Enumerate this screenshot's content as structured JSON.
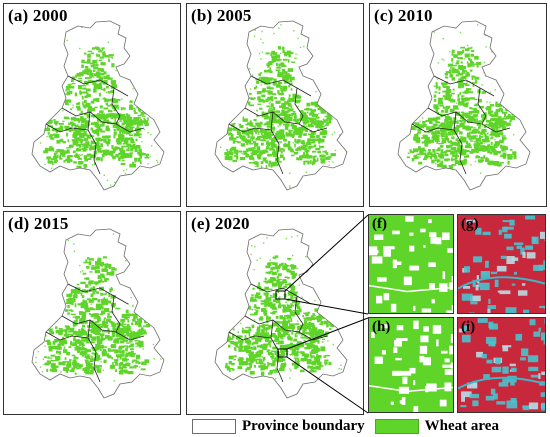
{
  "panels": [
    {
      "label": "(a) 2000"
    },
    {
      "label": "(b) 2005"
    },
    {
      "label": "(c) 2010"
    },
    {
      "label": "(d) 2015"
    },
    {
      "label": "(e) 2020"
    }
  ],
  "insets": [
    {
      "label": "(f)",
      "kind": "wheat-classification"
    },
    {
      "label": "(g)",
      "kind": "satellite-false-color"
    },
    {
      "label": "(h)",
      "kind": "wheat-classification"
    },
    {
      "label": "(i)",
      "kind": "satellite-false-color"
    }
  ],
  "legend": {
    "province_boundary": "Province boundary",
    "wheat_area": "Wheat area"
  },
  "colors": {
    "wheat": "#5fd52a",
    "boundary": "#6d6d6d",
    "satellite_red": "#c8283c",
    "satellite_cyan": "#49c3cf"
  }
}
